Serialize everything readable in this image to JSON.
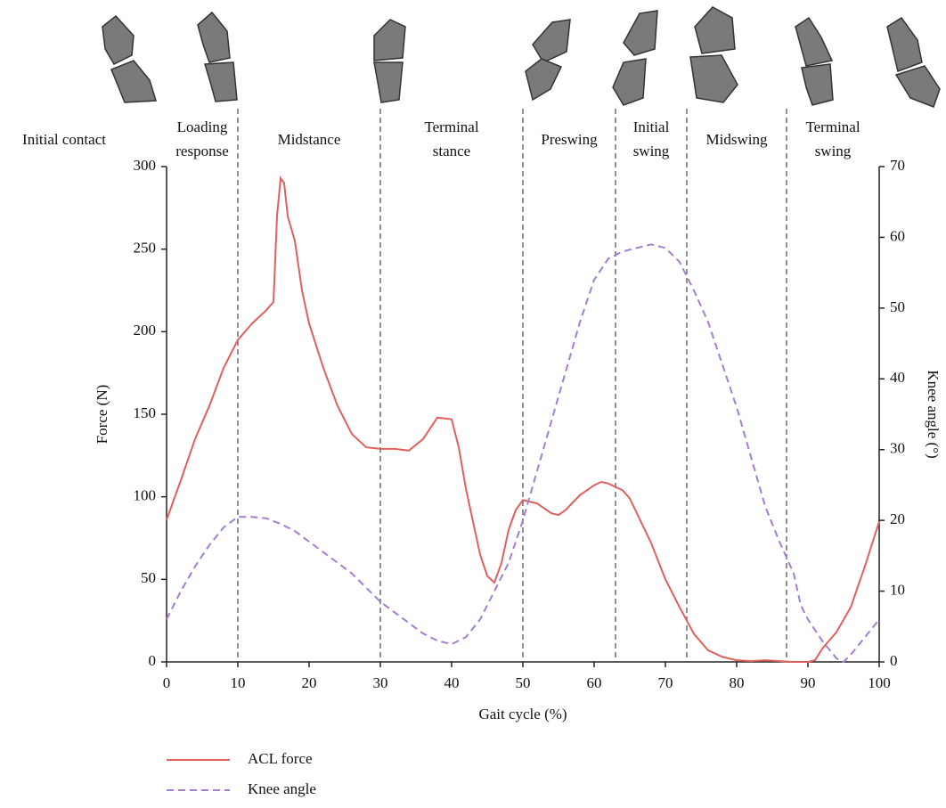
{
  "chart_data": {
    "type": "line",
    "xlabel": "Gait cycle (%)",
    "ylabel": "Force (N)",
    "y2label": "Knee angle (°)",
    "xlim": [
      0,
      100
    ],
    "xticks": [
      0,
      10,
      20,
      30,
      40,
      50,
      60,
      70,
      80,
      90,
      100
    ],
    "ylim": [
      0,
      300
    ],
    "yticks": [
      0,
      50,
      100,
      150,
      200,
      250,
      300
    ],
    "y2lim": [
      0,
      70
    ],
    "y2ticks": [
      0,
      10,
      20,
      30,
      40,
      50,
      60,
      70
    ],
    "grid": false,
    "legend": "bottom-left",
    "phase_lines": [
      10,
      30,
      50,
      63,
      73,
      87
    ],
    "phases": [
      [
        "Initial contact"
      ],
      [
        "Loading",
        "response"
      ],
      [
        "Midstance"
      ],
      [
        "Terminal",
        "stance"
      ],
      [
        "Preswing"
      ],
      [
        "Initial",
        "swing"
      ],
      [
        "Midswing"
      ],
      [
        "Terminal",
        "swing"
      ]
    ],
    "series": [
      {
        "name": "ACL force",
        "color": "#e0605e",
        "dash": "solid",
        "axis": "y",
        "x": [
          0,
          2,
          4,
          6,
          8,
          10,
          12,
          14,
          15,
          15.5,
          16,
          16.5,
          17,
          18,
          19,
          20,
          22,
          24,
          26,
          28,
          30,
          32,
          34,
          36,
          38,
          40,
          41,
          42,
          43,
          44,
          45,
          46,
          47,
          48,
          49,
          50,
          52,
          54,
          55,
          56,
          58,
          60,
          61,
          62,
          64,
          65,
          66,
          68,
          70,
          72,
          74,
          76,
          78,
          80,
          82,
          84,
          86,
          88,
          90,
          91,
          92,
          94,
          96,
          98,
          100
        ],
        "values": [
          86,
          110,
          135,
          155,
          178,
          195,
          205,
          213,
          218,
          270,
          293,
          290,
          270,
          255,
          225,
          205,
          178,
          155,
          138,
          130,
          129,
          129,
          128,
          135,
          148,
          147,
          130,
          105,
          85,
          65,
          52,
          48,
          60,
          80,
          92,
          98,
          96,
          90,
          89,
          92,
          101,
          107,
          109,
          108,
          104,
          99,
          90,
          72,
          50,
          33,
          17,
          7,
          3,
          1,
          0.5,
          1,
          0.5,
          0,
          0,
          1,
          8,
          18,
          33,
          58,
          85
        ]
      },
      {
        "name": "Knee angle",
        "color": "#a27fcf",
        "dash": "dashed",
        "axis": "y2",
        "x": [
          0,
          2,
          4,
          6,
          8,
          10,
          12,
          14,
          16,
          18,
          20,
          22,
          24,
          26,
          28,
          30,
          32,
          34,
          36,
          38,
          40,
          42,
          44,
          46,
          48,
          50,
          52,
          54,
          56,
          58,
          60,
          62,
          64,
          66,
          68,
          70,
          72,
          74,
          76,
          78,
          80,
          82,
          84,
          86,
          88,
          89,
          90,
          92,
          94,
          95,
          96,
          98,
          100
        ],
        "values": [
          6,
          10,
          13.5,
          16.5,
          19,
          20.5,
          20.5,
          20.3,
          19.5,
          18.5,
          17,
          15.5,
          14,
          12.5,
          10.5,
          8.5,
          7,
          5.5,
          4,
          3,
          2.5,
          3.5,
          6,
          10,
          14,
          20,
          27,
          34,
          41,
          48,
          54,
          57,
          58,
          58.5,
          59,
          58.5,
          56.5,
          52.5,
          48,
          42,
          36,
          29,
          22,
          17,
          12.5,
          8,
          6,
          3,
          0.5,
          0,
          1,
          3.5,
          6
        ]
      }
    ]
  }
}
